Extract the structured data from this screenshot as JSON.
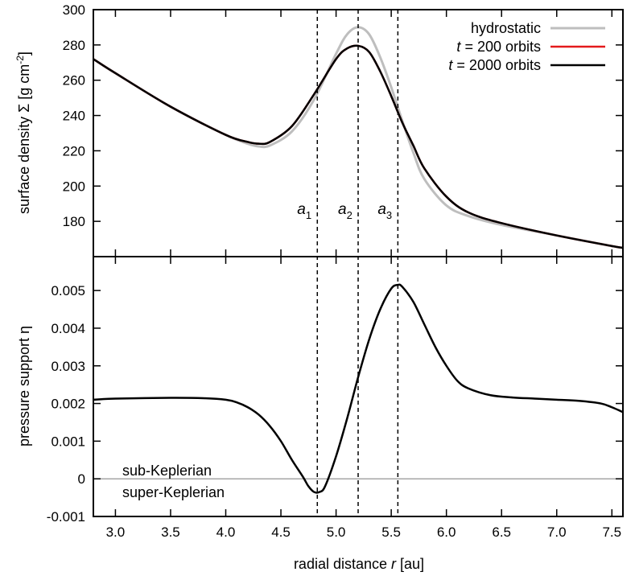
{
  "chart_data": [
    {
      "type": "line",
      "xlabel": "radial distance r [au]",
      "ylabel": "surface density Σ [g cm-2]",
      "xlim": [
        2.8,
        7.6
      ],
      "ylim": [
        160,
        300
      ],
      "xticks": [
        3.0,
        3.5,
        4.0,
        4.5,
        5.0,
        5.5,
        6.0,
        6.5,
        7.0,
        7.5
      ],
      "yticks": [
        180,
        200,
        220,
        240,
        260,
        280,
        300
      ],
      "legend_position": "top-right",
      "series": [
        {
          "name": "hydrostatic",
          "color": "#bebebe",
          "x": [
            2.8,
            3.0,
            3.5,
            4.0,
            4.2,
            4.3,
            4.4,
            4.6,
            4.8,
            5.0,
            5.1,
            5.2,
            5.3,
            5.4,
            5.5,
            5.6,
            5.7,
            5.8,
            6.0,
            6.2,
            6.5,
            7.0,
            7.5,
            7.6
          ],
          "y": [
            272,
            264,
            245,
            229,
            224,
            222.5,
            223,
            231,
            249,
            275,
            286,
            290,
            286,
            273,
            256,
            237,
            219,
            204,
            189,
            183,
            178,
            172,
            166,
            165
          ]
        },
        {
          "name": "t = 200 orbits",
          "color": "#e41a1c",
          "x": [
            2.8,
            3.0,
            3.5,
            4.0,
            4.2,
            4.3,
            4.4,
            4.6,
            4.8,
            5.0,
            5.1,
            5.2,
            5.3,
            5.4,
            5.5,
            5.6,
            5.7,
            5.8,
            6.0,
            6.2,
            6.5,
            7.0,
            7.5,
            7.6
          ],
          "y": [
            272,
            264,
            245,
            229,
            225,
            224,
            225,
            234,
            252,
            272,
            278,
            279.5,
            276,
            265,
            251,
            236,
            223,
            210,
            194,
            185,
            179,
            172,
            166,
            165
          ]
        },
        {
          "name": "t = 2000 orbits",
          "color": "#000000",
          "x": [
            2.8,
            3.0,
            3.5,
            4.0,
            4.2,
            4.3,
            4.4,
            4.6,
            4.8,
            5.0,
            5.1,
            5.2,
            5.3,
            5.4,
            5.5,
            5.6,
            5.7,
            5.8,
            6.0,
            6.2,
            6.5,
            7.0,
            7.5,
            7.6
          ],
          "y": [
            272,
            264,
            245,
            229,
            225,
            224,
            225,
            234,
            252,
            272,
            278,
            279.5,
            276,
            265,
            251,
            236,
            223,
            210,
            194,
            185,
            179,
            172,
            166,
            165
          ]
        }
      ],
      "vlines": [
        {
          "label": "a1",
          "base": "a",
          "sub": "1",
          "x": 4.83
        },
        {
          "label": "a2",
          "base": "a",
          "sub": "2",
          "x": 5.2
        },
        {
          "label": "a3",
          "base": "a",
          "sub": "3",
          "x": 5.56
        }
      ]
    },
    {
      "type": "line",
      "xlabel": "radial distance r [au]",
      "ylabel": "pressure support η",
      "xlim": [
        2.8,
        7.6
      ],
      "ylim": [
        -0.001,
        0.0059
      ],
      "xticks": [
        3.0,
        3.5,
        4.0,
        4.5,
        5.0,
        5.5,
        6.0,
        6.5,
        7.0,
        7.5
      ],
      "xticklabels": [
        "3.0",
        "3.5",
        "4.0",
        "4.5",
        "5.0",
        "5.5",
        "6.0",
        "6.5",
        "7.0",
        "7.5"
      ],
      "yticks": [
        -0.001,
        0,
        0.001,
        0.002,
        0.003,
        0.004,
        0.005
      ],
      "yticklabels": [
        "-0.001",
        "0",
        "0.001",
        "0.002",
        "0.003",
        "0.004",
        "0.005"
      ],
      "hline": 0,
      "annotations": [
        "sub-Keplerian",
        "super-Keplerian"
      ],
      "series": [
        {
          "color": "#000000",
          "x": [
            2.8,
            3.0,
            3.5,
            3.8,
            4.0,
            4.1,
            4.2,
            4.3,
            4.4,
            4.5,
            4.6,
            4.7,
            4.75,
            4.8,
            4.85,
            4.9,
            5.0,
            5.1,
            5.2,
            5.3,
            5.4,
            5.5,
            5.56,
            5.6,
            5.7,
            5.8,
            5.9,
            6.0,
            6.1,
            6.2,
            6.4,
            6.6,
            6.8,
            7.0,
            7.2,
            7.4,
            7.5,
            7.6
          ],
          "y": [
            0.0021,
            0.00213,
            0.00215,
            0.00214,
            0.0021,
            0.00203,
            0.0019,
            0.0017,
            0.0014,
            0.001,
            0.0005,
            5e-05,
            -0.0002,
            -0.00035,
            -0.00035,
            -0.0002,
            0.0006,
            0.0016,
            0.0027,
            0.0037,
            0.0045,
            0.00505,
            0.00515,
            0.0051,
            0.0047,
            0.0041,
            0.0035,
            0.003,
            0.0026,
            0.0024,
            0.00222,
            0.00216,
            0.00213,
            0.0021,
            0.00207,
            0.002,
            0.0019,
            0.00177
          ]
        }
      ],
      "vlines": [
        4.83,
        5.2,
        5.56
      ]
    }
  ]
}
